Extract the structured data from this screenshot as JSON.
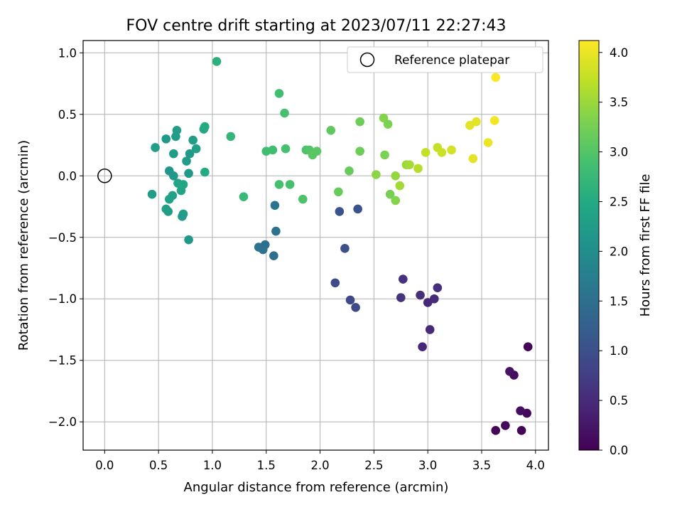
{
  "chart_data": {
    "type": "scatter",
    "title": "FOV centre drift starting at 2023/07/11 22:27:43",
    "xlabel": "Angular distance from reference (arcmin)",
    "ylabel": "Rotation from reference (arcmin)",
    "xlim": [
      -0.2,
      4.12
    ],
    "ylim": [
      -2.23,
      1.1
    ],
    "xticks": [
      "0.0",
      "0.5",
      "1.0",
      "1.5",
      "2.0",
      "2.5",
      "3.0",
      "3.5",
      "4.0"
    ],
    "xtick_values": [
      0,
      0.5,
      1,
      1.5,
      2,
      2.5,
      3,
      3.5,
      4
    ],
    "yticks": [
      "1.0",
      "0.5",
      "0.0",
      "−0.5",
      "−1.0",
      "−1.5",
      "−2.0"
    ],
    "ytick_values": [
      1,
      0.5,
      0,
      -0.5,
      -1,
      -1.5,
      -2
    ],
    "grid": true,
    "legend": {
      "position": "upper right",
      "entries": [
        "Reference platepar"
      ]
    },
    "reference_point": {
      "x": 0.0,
      "y": 0.0,
      "label": "Reference platepar"
    },
    "colorbar": {
      "label": "Hours from first FF file",
      "colormap": "viridis",
      "range": [
        0.0,
        4.12
      ],
      "tick_values": [
        0,
        0.5,
        1,
        1.5,
        2,
        2.5,
        3,
        3.5,
        4
      ],
      "ticks": [
        "0.0",
        "0.5",
        "1.0",
        "1.5",
        "2.0",
        "2.5",
        "3.0",
        "3.5",
        "4.0"
      ]
    },
    "series": [
      {
        "points": [
          {
            "x": 3.63,
            "y": -2.07,
            "c": 0.05
          },
          {
            "x": 3.72,
            "y": -2.03,
            "c": 0.1
          },
          {
            "x": 3.87,
            "y": -2.07,
            "c": 0.05
          },
          {
            "x": 3.92,
            "y": -1.93,
            "c": 0.1
          },
          {
            "x": 3.86,
            "y": -1.91,
            "c": 0.15
          },
          {
            "x": 3.8,
            "y": -1.62,
            "c": 0.15
          },
          {
            "x": 3.76,
            "y": -1.59,
            "c": 0.2
          },
          {
            "x": 3.93,
            "y": -1.39,
            "c": 0.05
          },
          {
            "x": 2.95,
            "y": -1.39,
            "c": 0.45
          },
          {
            "x": 3.02,
            "y": -1.25,
            "c": 0.5
          },
          {
            "x": 3.0,
            "y": -1.03,
            "c": 0.45
          },
          {
            "x": 2.93,
            "y": -0.97,
            "c": 0.55
          },
          {
            "x": 3.06,
            "y": -1.0,
            "c": 0.5
          },
          {
            "x": 3.09,
            "y": -0.91,
            "c": 0.55
          },
          {
            "x": 2.75,
            "y": -0.99,
            "c": 0.6
          },
          {
            "x": 2.77,
            "y": -0.84,
            "c": 0.6
          },
          {
            "x": 2.33,
            "y": -1.07,
            "c": 0.9
          },
          {
            "x": 2.28,
            "y": -1.01,
            "c": 0.9
          },
          {
            "x": 2.14,
            "y": -0.87,
            "c": 0.95
          },
          {
            "x": 2.23,
            "y": -0.59,
            "c": 1.0
          },
          {
            "x": 2.18,
            "y": -0.29,
            "c": 1.05
          },
          {
            "x": 2.35,
            "y": -0.27,
            "c": 1.05
          },
          {
            "x": 1.57,
            "y": -0.65,
            "c": 1.5
          },
          {
            "x": 1.49,
            "y": -0.56,
            "c": 1.5
          },
          {
            "x": 1.43,
            "y": -0.58,
            "c": 1.55
          },
          {
            "x": 1.47,
            "y": -0.6,
            "c": 1.55
          },
          {
            "x": 1.59,
            "y": -0.45,
            "c": 1.55
          },
          {
            "x": 1.58,
            "y": -0.24,
            "c": 1.6
          },
          {
            "x": 0.78,
            "y": -0.52,
            "c": 2.2
          },
          {
            "x": 0.72,
            "y": -0.33,
            "c": 2.25
          },
          {
            "x": 0.73,
            "y": -0.31,
            "c": 2.25
          },
          {
            "x": 0.57,
            "y": -0.27,
            "c": 2.3
          },
          {
            "x": 0.59,
            "y": -0.29,
            "c": 2.3
          },
          {
            "x": 0.6,
            "y": -0.19,
            "c": 2.35
          },
          {
            "x": 0.63,
            "y": -0.16,
            "c": 2.35
          },
          {
            "x": 0.71,
            "y": -0.12,
            "c": 2.4
          },
          {
            "x": 0.68,
            "y": -0.06,
            "c": 2.4
          },
          {
            "x": 0.73,
            "y": -0.07,
            "c": 2.45
          },
          {
            "x": 0.44,
            "y": -0.15,
            "c": 2.3
          },
          {
            "x": 0.64,
            "y": 0.0,
            "c": 2.2
          },
          {
            "x": 0.6,
            "y": 0.04,
            "c": 2.15
          },
          {
            "x": 0.78,
            "y": 0.02,
            "c": 2.2
          },
          {
            "x": 0.76,
            "y": 0.12,
            "c": 2.25
          },
          {
            "x": 0.79,
            "y": 0.18,
            "c": 2.2
          },
          {
            "x": 0.64,
            "y": 0.18,
            "c": 2.25
          },
          {
            "x": 0.47,
            "y": 0.23,
            "c": 2.3
          },
          {
            "x": 0.57,
            "y": 0.3,
            "c": 2.2
          },
          {
            "x": 0.66,
            "y": 0.32,
            "c": 2.25
          },
          {
            "x": 0.67,
            "y": 0.37,
            "c": 2.3
          },
          {
            "x": 0.82,
            "y": 0.29,
            "c": 2.3
          },
          {
            "x": 0.85,
            "y": 0.22,
            "c": 2.35
          },
          {
            "x": 0.92,
            "y": 0.38,
            "c": 2.45
          },
          {
            "x": 0.93,
            "y": 0.4,
            "c": 2.5
          },
          {
            "x": 0.93,
            "y": 0.03,
            "c": 2.5
          },
          {
            "x": 1.04,
            "y": 0.93,
            "c": 2.6
          },
          {
            "x": 1.17,
            "y": 0.32,
            "c": 2.7
          },
          {
            "x": 1.29,
            "y": -0.17,
            "c": 2.75
          },
          {
            "x": 1.5,
            "y": 0.2,
            "c": 2.85
          },
          {
            "x": 1.56,
            "y": 0.21,
            "c": 2.85
          },
          {
            "x": 1.62,
            "y": 0.67,
            "c": 2.85
          },
          {
            "x": 1.67,
            "y": 0.51,
            "c": 2.9
          },
          {
            "x": 1.68,
            "y": 0.22,
            "c": 2.9
          },
          {
            "x": 1.62,
            "y": -0.07,
            "c": 2.9
          },
          {
            "x": 1.72,
            "y": -0.07,
            "c": 2.9
          },
          {
            "x": 1.84,
            "y": -0.19,
            "c": 2.95
          },
          {
            "x": 1.87,
            "y": 0.21,
            "c": 2.95
          },
          {
            "x": 1.9,
            "y": 0.21,
            "c": 3.0
          },
          {
            "x": 1.93,
            "y": 0.17,
            "c": 3.05
          },
          {
            "x": 1.97,
            "y": 0.2,
            "c": 3.05
          },
          {
            "x": 2.1,
            "y": 0.37,
            "c": 3.1
          },
          {
            "x": 2.17,
            "y": -0.13,
            "c": 3.15
          },
          {
            "x": 2.27,
            "y": 0.04,
            "c": 3.15
          },
          {
            "x": 2.37,
            "y": 0.44,
            "c": 3.2
          },
          {
            "x": 2.37,
            "y": 0.2,
            "c": 3.2
          },
          {
            "x": 2.52,
            "y": 0.01,
            "c": 3.4
          },
          {
            "x": 2.59,
            "y": 0.47,
            "c": 3.35
          },
          {
            "x": 2.63,
            "y": 0.42,
            "c": 3.3
          },
          {
            "x": 2.6,
            "y": 0.17,
            "c": 3.3
          },
          {
            "x": 2.65,
            "y": -0.15,
            "c": 3.25
          },
          {
            "x": 2.7,
            "y": -0.2,
            "c": 3.35
          },
          {
            "x": 2.7,
            "y": 0.0,
            "c": 3.45
          },
          {
            "x": 2.74,
            "y": -0.08,
            "c": 3.55
          },
          {
            "x": 2.8,
            "y": 0.09,
            "c": 3.5
          },
          {
            "x": 2.83,
            "y": 0.09,
            "c": 3.55
          },
          {
            "x": 2.91,
            "y": 0.06,
            "c": 3.65
          },
          {
            "x": 2.98,
            "y": 0.19,
            "c": 3.75
          },
          {
            "x": 3.09,
            "y": 0.23,
            "c": 3.75
          },
          {
            "x": 3.13,
            "y": 0.19,
            "c": 3.8
          },
          {
            "x": 3.22,
            "y": 0.21,
            "c": 3.85
          },
          {
            "x": 3.39,
            "y": 0.41,
            "c": 3.95
          },
          {
            "x": 3.42,
            "y": 0.14,
            "c": 3.95
          },
          {
            "x": 3.45,
            "y": 0.44,
            "c": 3.95
          },
          {
            "x": 3.56,
            "y": 0.27,
            "c": 4.0
          },
          {
            "x": 3.62,
            "y": 0.45,
            "c": 4.05
          },
          {
            "x": 3.63,
            "y": 0.8,
            "c": 4.1
          }
        ]
      }
    ]
  }
}
